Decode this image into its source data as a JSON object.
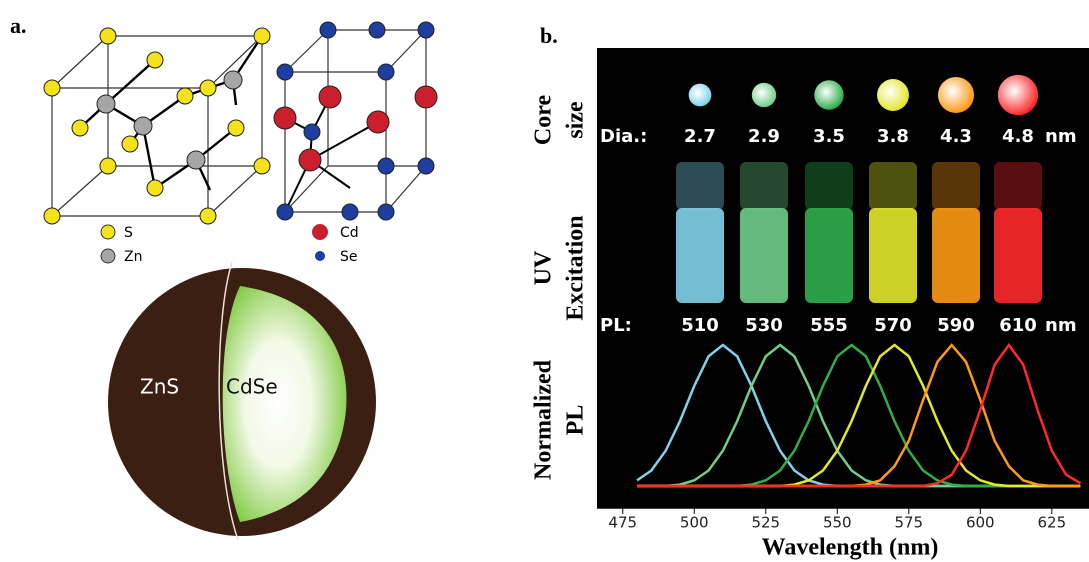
{
  "panel_a": {
    "label": "a.",
    "zns_legend": [
      "S",
      "Zn"
    ],
    "cdse_legend": [
      "Cd",
      "Se"
    ],
    "shell_label": "ZnS",
    "core_label": "CdSe"
  },
  "panel_b": {
    "label": "b.",
    "row_labels": [
      [
        "Core",
        "size"
      ],
      [
        "UV",
        "Excitation"
      ],
      [
        "Normalized",
        "PL"
      ]
    ],
    "dia_label": "Dia.:",
    "diameters": [
      2.7,
      2.9,
      3.5,
      3.8,
      4.3,
      4.8
    ],
    "dia_unit": "nm",
    "pl_label": "PL:",
    "pl_peaks": [
      510,
      530,
      555,
      570,
      590,
      610
    ],
    "pl_unit": "nm"
  },
  "chart_data": {
    "type": "line",
    "x_label": "Wavelength (nm)",
    "x": [
      480,
      485,
      490,
      495,
      500,
      505,
      510,
      515,
      520,
      525,
      530,
      535,
      540,
      545,
      550,
      555,
      560,
      565,
      570,
      575,
      580,
      585,
      590,
      595,
      600,
      605,
      610,
      615,
      620,
      625,
      630,
      635
    ],
    "xlim": [
      466,
      638
    ],
    "xticks": [
      475,
      500,
      525,
      550,
      575,
      600,
      625
    ],
    "ylim": [
      0,
      1
    ],
    "series": [
      {
        "color": "#7fd3ea",
        "values": [
          0.04,
          0.11,
          0.25,
          0.46,
          0.71,
          0.92,
          1,
          0.92,
          0.71,
          0.46,
          0.25,
          0.11,
          0.04,
          0.01,
          0,
          0,
          0,
          0,
          0,
          0,
          0,
          0,
          0,
          0,
          0,
          0,
          0,
          0,
          0,
          0,
          0,
          0
        ]
      },
      {
        "color": "#6fce8a",
        "values": [
          0,
          0,
          0,
          0.01,
          0.04,
          0.11,
          0.25,
          0.46,
          0.71,
          0.92,
          1,
          0.92,
          0.71,
          0.46,
          0.25,
          0.11,
          0.04,
          0.01,
          0,
          0,
          0,
          0,
          0,
          0,
          0,
          0,
          0,
          0,
          0,
          0,
          0,
          0
        ]
      },
      {
        "color": "#2fae4c",
        "values": [
          0,
          0,
          0,
          0,
          0,
          0,
          0,
          0,
          0.01,
          0.04,
          0.11,
          0.25,
          0.46,
          0.71,
          0.92,
          1,
          0.92,
          0.71,
          0.46,
          0.25,
          0.11,
          0.04,
          0.01,
          0,
          0,
          0,
          0,
          0,
          0,
          0,
          0,
          0
        ]
      },
      {
        "color": "#e3e82a",
        "values": [
          0,
          0,
          0,
          0,
          0,
          0,
          0,
          0,
          0,
          0,
          0,
          0.01,
          0.04,
          0.11,
          0.25,
          0.46,
          0.71,
          0.92,
          1,
          0.92,
          0.71,
          0.46,
          0.25,
          0.11,
          0.04,
          0.01,
          0,
          0,
          0,
          0,
          0,
          0
        ]
      },
      {
        "color": "#ff9a14",
        "values": [
          0,
          0,
          0,
          0,
          0,
          0,
          0,
          0,
          0,
          0,
          0,
          0,
          0,
          0,
          0,
          0,
          0.01,
          0.04,
          0.14,
          0.32,
          0.61,
          0.88,
          1,
          0.88,
          0.61,
          0.32,
          0.14,
          0.04,
          0.01,
          0,
          0,
          0
        ]
      },
      {
        "color": "#ff2a2a",
        "values": [
          0,
          0,
          0,
          0,
          0,
          0,
          0,
          0,
          0,
          0,
          0,
          0,
          0,
          0,
          0,
          0,
          0,
          0,
          0,
          0,
          0,
          0.02,
          0.08,
          0.25,
          0.54,
          0.86,
          1,
          0.86,
          0.54,
          0.25,
          0.08,
          0.02
        ]
      }
    ]
  }
}
